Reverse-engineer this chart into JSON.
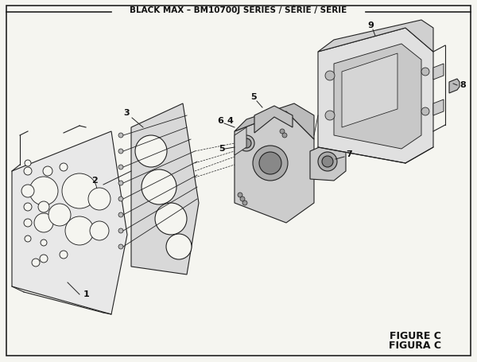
{
  "title": "BLACK MAX – BM10700J SERIES / SÉRIE / SERIE",
  "figure_label": "FIGURE C",
  "figura_label": "FIGURA C",
  "bg_color": "#f5f5f0",
  "border_color": "#222222",
  "line_color": "#222222",
  "part_numbers": [
    1,
    2,
    3,
    4,
    5,
    6,
    7,
    8,
    9
  ],
  "figsize": [
    6.0,
    4.55
  ],
  "dpi": 100
}
